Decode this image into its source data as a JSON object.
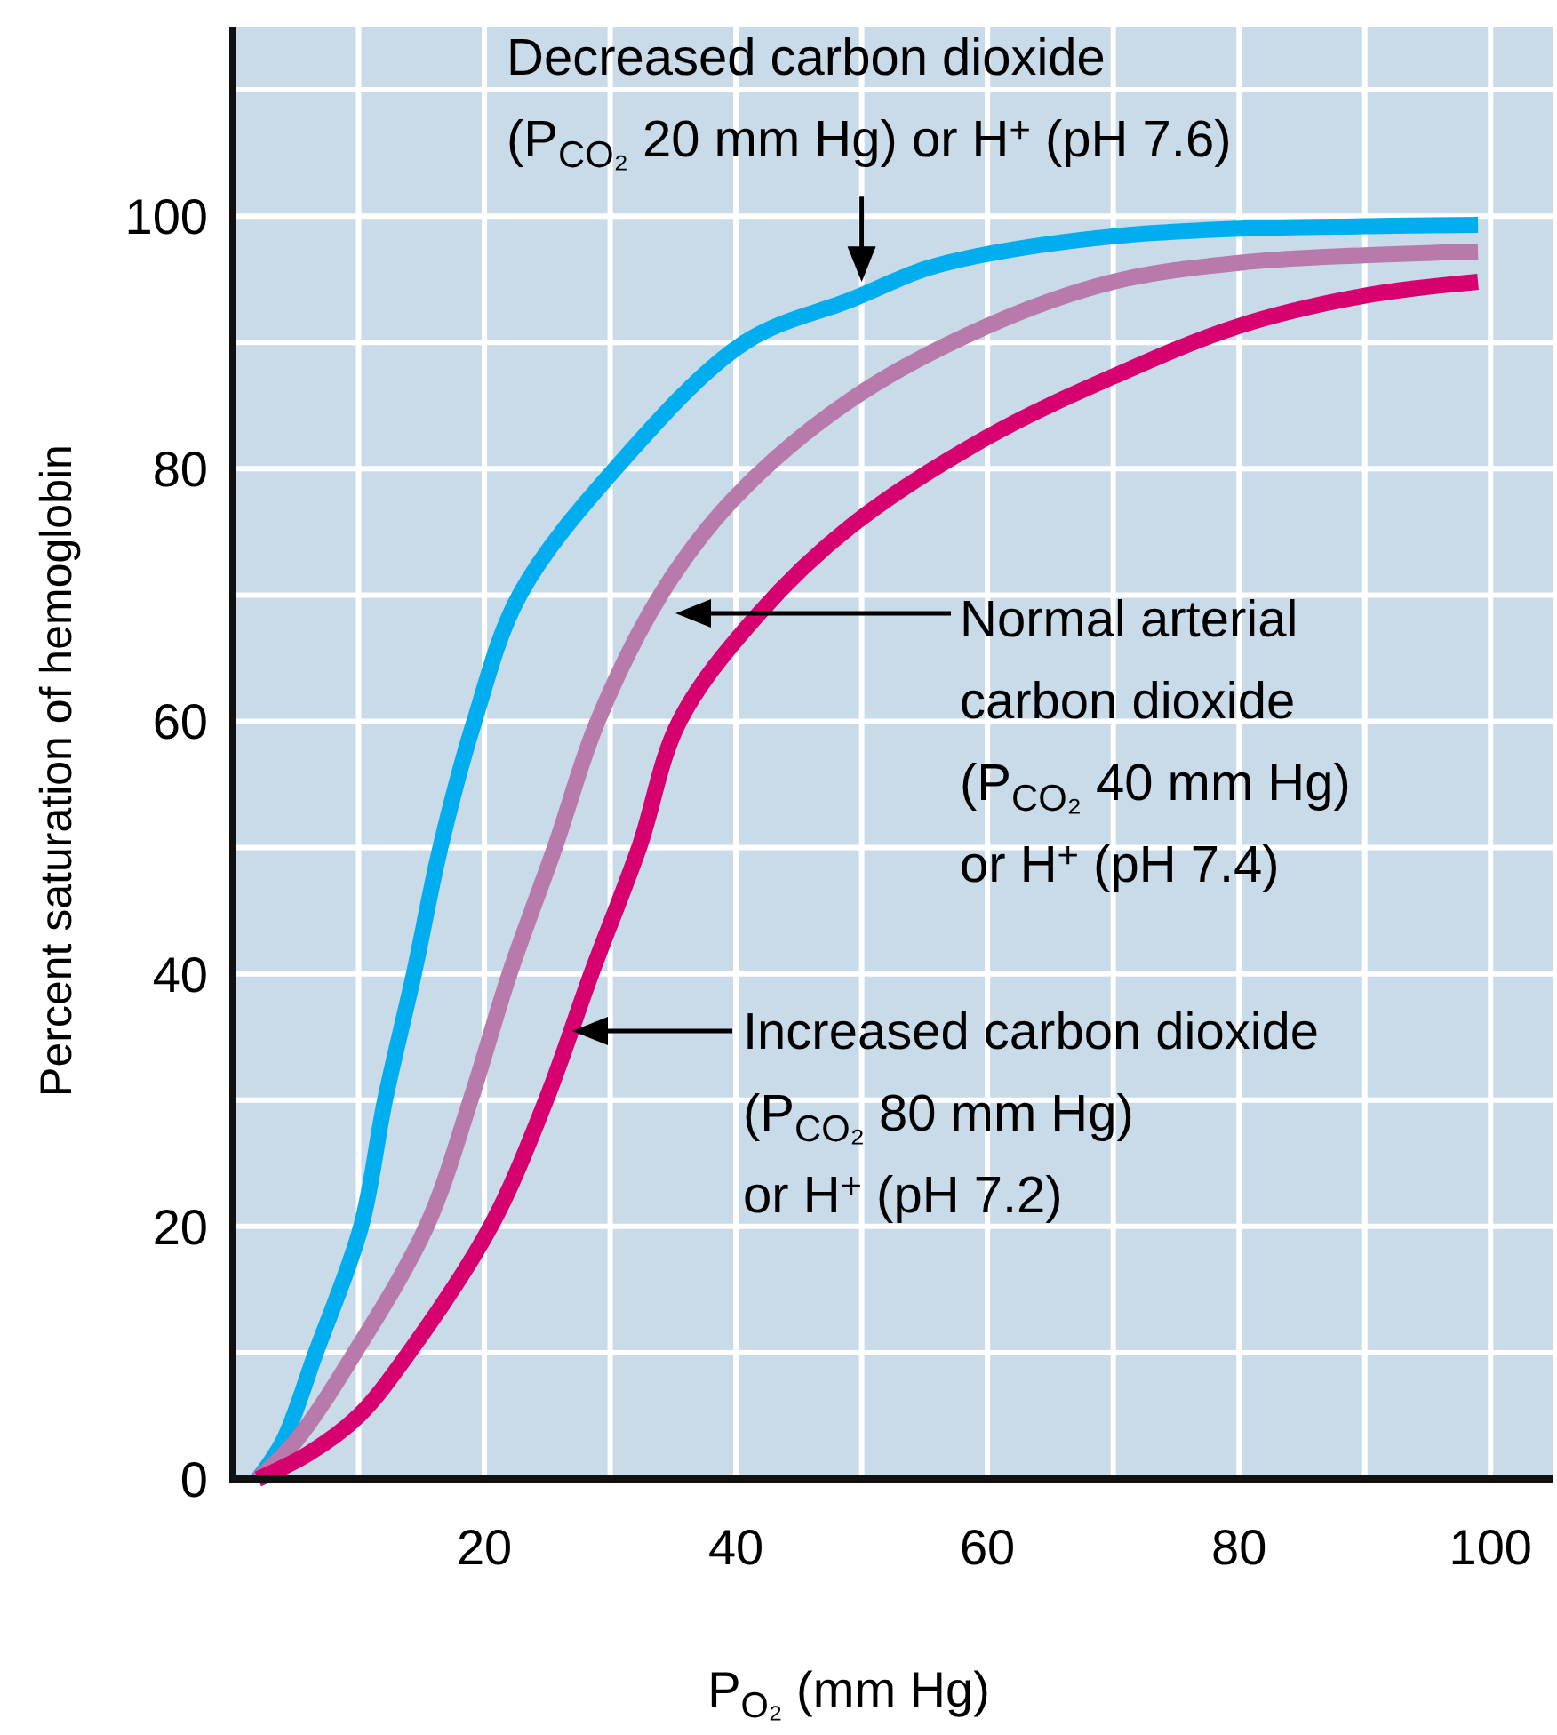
{
  "chart_data": {
    "type": "line",
    "xlabel": "P$_{O₂}$ (mm Hg)",
    "ylabel": "Percent saturation of hemoglobin",
    "xlim": [
      0,
      105
    ],
    "ylim": [
      0,
      115
    ],
    "xticks": [
      {
        "value": 10,
        "label": null
      },
      20,
      {
        "value": 30,
        "label": null
      },
      40,
      {
        "value": 50,
        "label": null
      },
      60,
      {
        "value": 70,
        "label": null
      },
      80,
      {
        "value": 90,
        "label": null
      },
      100
    ],
    "yticks": [
      0,
      {
        "value": 10,
        "label": null
      },
      20,
      {
        "value": 30,
        "label": null
      },
      40,
      {
        "value": 50,
        "label": null
      },
      60,
      {
        "value": 70,
        "label": null
      },
      80,
      {
        "value": 90,
        "label": null
      },
      100,
      {
        "value": 110,
        "label": null
      }
    ],
    "grid": true,
    "marker": "none",
    "line_style": "solid",
    "series": [
      {
        "color": "#00aeef",
        "x": [
          2,
          4,
          6.6,
          10.2,
          12.1,
          14.4,
          16.5,
          19.2,
          22.8,
          30.4,
          40.7,
          49.2,
          55,
          60,
          70,
          80,
          90,
          99
        ],
        "values": [
          0,
          3,
          10,
          20,
          30,
          40,
          50,
          60,
          70,
          80,
          90,
          93.4,
          95.8,
          97,
          98.4,
          99,
          99.2,
          99.3
        ]
      },
      {
        "color": "#b87aab",
        "x": [
          2,
          5,
          9.7,
          15.4,
          18.9,
          22,
          25.6,
          29,
          34,
          39.7,
          49.2,
          60,
          70,
          80,
          90,
          99
        ],
        "values": [
          0,
          3,
          10,
          20,
          30,
          40,
          50,
          60,
          70,
          77.5,
          85.5,
          91.3,
          94.8,
          96.3,
          96.9,
          97.2
        ]
      },
      {
        "color": "#d6006f",
        "x": [
          2,
          6,
          10,
          14,
          20.5,
          24.9,
          28.5,
          32.3,
          35.5,
          41.8,
          49.2,
          60,
          70,
          80,
          90,
          99
        ],
        "values": [
          0,
          2,
          5,
          10,
          20,
          30,
          40,
          50,
          60,
          68.5,
          75.5,
          82.5,
          87.3,
          91.3,
          93.7,
          94.8
        ]
      }
    ],
    "annotations": [
      {
        "text": "Decreased carbon dioxide\n(P$_{CO₂}$ 20 mm Hg) or H$^{+}$ (pH 7.6)",
        "x": 50,
        "y": 94.5
      },
      {
        "text": "Normal arterial\ncarbon dioxide\n(P$_{CO₂}$ 40 mm Hg)\nor H$^{+}$ (pH 7.4)"
      },
      {
        "text": "Increased carbon dioxide\n(P$_{CO₂}$ 80 mm Hg)\nor H$^{+}$ (pH 7.2)"
      }
    ]
  }
}
